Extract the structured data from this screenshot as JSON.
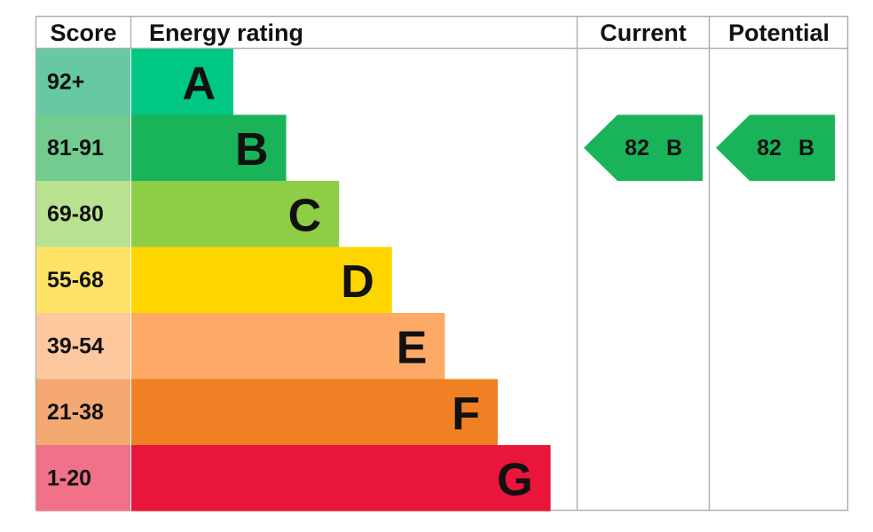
{
  "headers": {
    "score": "Score",
    "rating": "Energy rating",
    "current": "Current",
    "potential": "Potential"
  },
  "rows": [
    {
      "score": "92+",
      "band": "A",
      "color": "#00c781",
      "score_color": "#66c9a3"
    },
    {
      "score": "81-91",
      "band": "B",
      "color": "#19b459",
      "score_color": "#72cc8f"
    },
    {
      "score": "69-80",
      "band": "C",
      "color": "#8dce46",
      "score_color": "#b9e290"
    },
    {
      "score": "55-68",
      "band": "D",
      "color": "#ffd500",
      "score_color": "#ffe366"
    },
    {
      "score": "39-54",
      "band": "E",
      "color": "#fcaa65",
      "score_color": "#fdc89e"
    },
    {
      "score": "21-38",
      "band": "F",
      "color": "#ef8023",
      "score_color": "#f4a872"
    },
    {
      "score": "1-20",
      "band": "G",
      "color": "#e9153b",
      "score_color": "#f07188"
    }
  ],
  "current": {
    "score": 82,
    "band": "B"
  },
  "potential": {
    "score": 82,
    "band": "B"
  }
}
